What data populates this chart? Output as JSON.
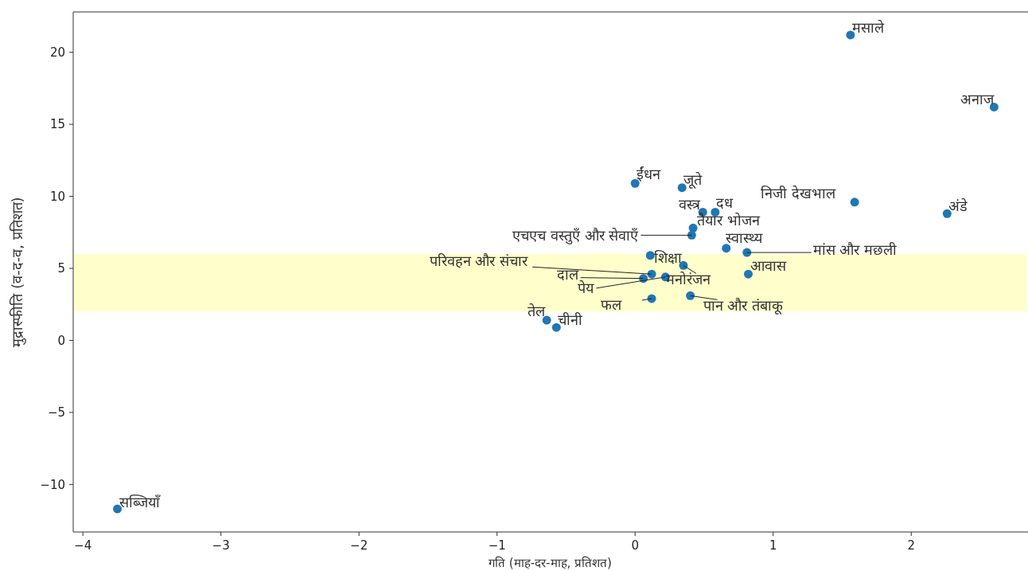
{
  "chart_data": {
    "type": "scatter",
    "xlabel": "गति (माह-दर-माह, प्रतिशत)",
    "ylabel": "मुद्रास्फीति (व-द-व, प्रतिशत)",
    "x": [
      1.56,
      2.6,
      0.0,
      0.34,
      1.59,
      2.26,
      0.49,
      0.58,
      0.42,
      0.41,
      0.66,
      0.81,
      0.11,
      0.82,
      0.12,
      0.06,
      0.35,
      0.22,
      0.12,
      0.4,
      -0.64,
      -0.57,
      -3.75
    ],
    "values": [
      21.2,
      16.2,
      10.9,
      10.6,
      9.6,
      8.8,
      8.9,
      8.9,
      7.8,
      7.3,
      6.4,
      6.1,
      5.9,
      4.6,
      4.6,
      4.3,
      5.2,
      4.4,
      2.9,
      3.1,
      1.4,
      0.9,
      -11.7
    ],
    "color": "#1f77b4",
    "marker": "circle",
    "xlim": [
      -4.07,
      2.84
    ],
    "ylim": [
      -13.3,
      22.8
    ],
    "xticks": [
      -4,
      -3,
      -2,
      -1,
      0,
      1,
      2
    ],
    "yticks": [
      -10,
      -5,
      0,
      5,
      10,
      15,
      20
    ],
    "bands": [
      {
        "axis": "y",
        "from": 2,
        "to": 6,
        "color": "#ffffcc"
      }
    ],
    "annotations": [
      {
        "text": "मसाले",
        "x": 1.56,
        "y": 21.2
      },
      {
        "text": "अनाज",
        "x": 2.6,
        "y": 16.2
      },
      {
        "text": "ईंधन",
        "x": 0.0,
        "y": 10.9
      },
      {
        "text": "जूते",
        "x": 0.34,
        "y": 10.6
      },
      {
        "text": "निजी देखभाल",
        "x": 1.59,
        "y": 9.6
      },
      {
        "text": "अंडे",
        "x": 2.26,
        "y": 8.8
      },
      {
        "text": "वस्त्र",
        "x": 0.49,
        "y": 8.9
      },
      {
        "text": "दध",
        "x": 0.58,
        "y": 8.9
      },
      {
        "text": "तैयार भोजन",
        "x": 0.42,
        "y": 7.8
      },
      {
        "text": "एचएच वस्तुएँ और सेवाएँ",
        "x": 0.41,
        "y": 7.3
      },
      {
        "text": "स्वास्थ्य",
        "x": 0.66,
        "y": 6.4
      },
      {
        "text": "मांस और मछली",
        "x": 0.81,
        "y": 6.1
      },
      {
        "text": "शिक्षा",
        "x": 0.11,
        "y": 5.9
      },
      {
        "text": "आवास",
        "x": 0.82,
        "y": 4.6
      },
      {
        "text": "परिवहन और संचार",
        "x": 0.12,
        "y": 4.6
      },
      {
        "text": "दाल",
        "x": 0.06,
        "y": 4.3
      },
      {
        "text": "मनोरंजन",
        "x": 0.35,
        "y": 5.2
      },
      {
        "text": "पेय",
        "x": 0.22,
        "y": 4.4
      },
      {
        "text": "फल",
        "x": 0.12,
        "y": 2.9
      },
      {
        "text": "पान और तंबाकू",
        "x": 0.4,
        "y": 3.1
      },
      {
        "text": "तेल",
        "x": -0.64,
        "y": 1.4
      },
      {
        "text": "चीनी",
        "x": -0.57,
        "y": 0.9
      },
      {
        "text": "सब्जियाँ",
        "x": -3.75,
        "y": -11.7
      }
    ]
  }
}
